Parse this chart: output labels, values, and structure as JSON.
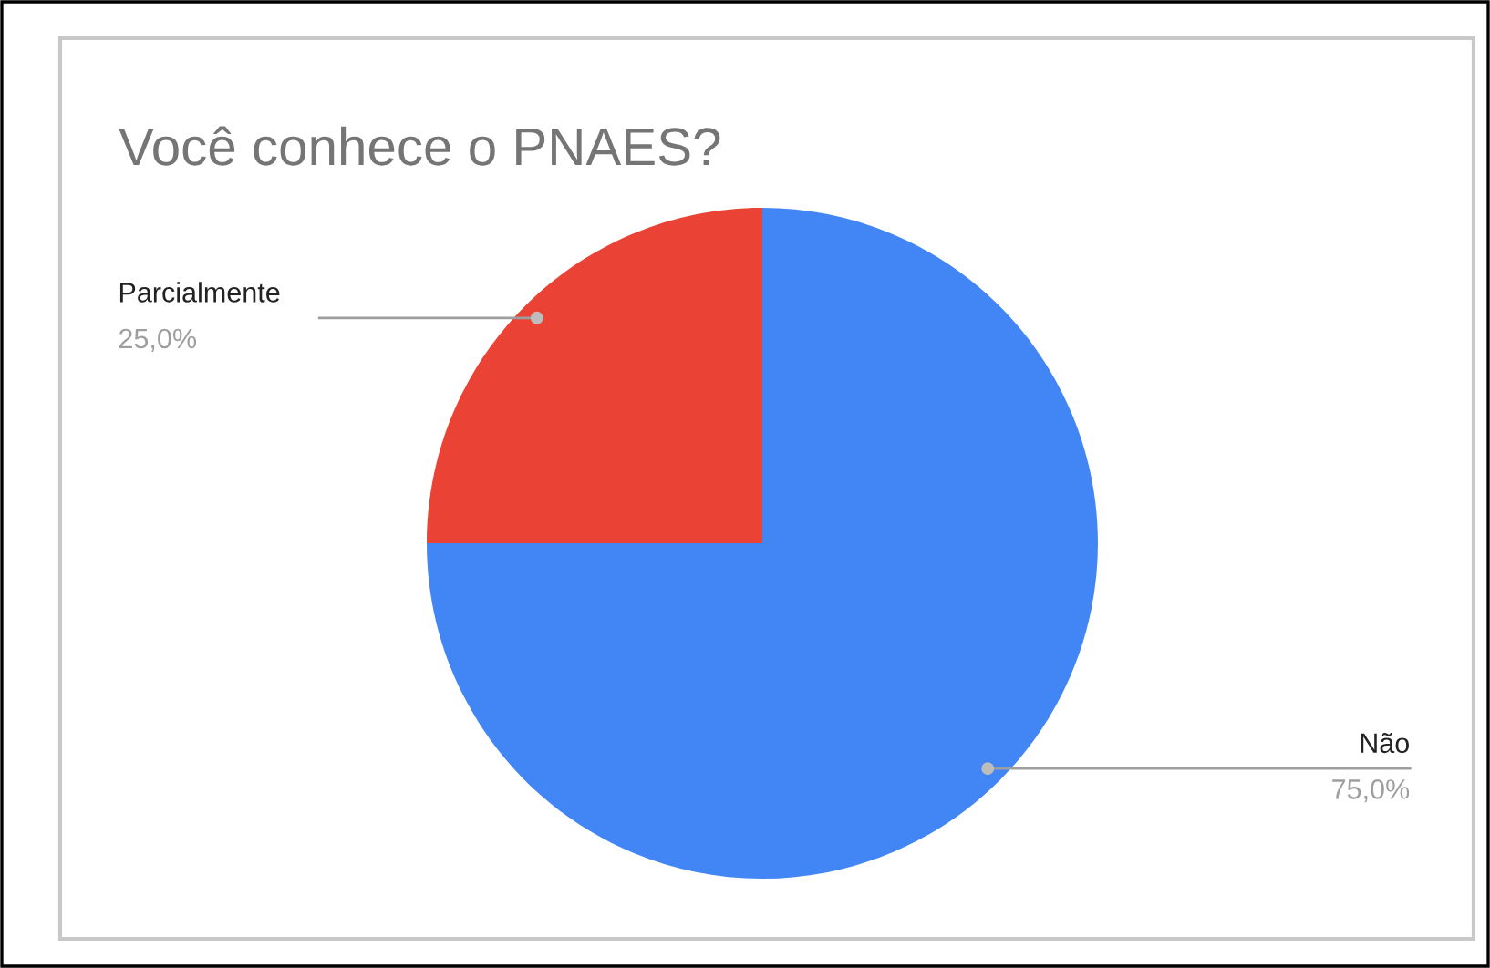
{
  "chart_data": {
    "type": "pie",
    "title": "Você conhece o PNAES?",
    "categories": [
      "Não",
      "Parcialmente"
    ],
    "values": [
      75,
      25
    ],
    "colors": [
      "#4285f4",
      "#ea4335"
    ],
    "value_labels": [
      "75,0%",
      "25,0%"
    ],
    "legend": false
  }
}
